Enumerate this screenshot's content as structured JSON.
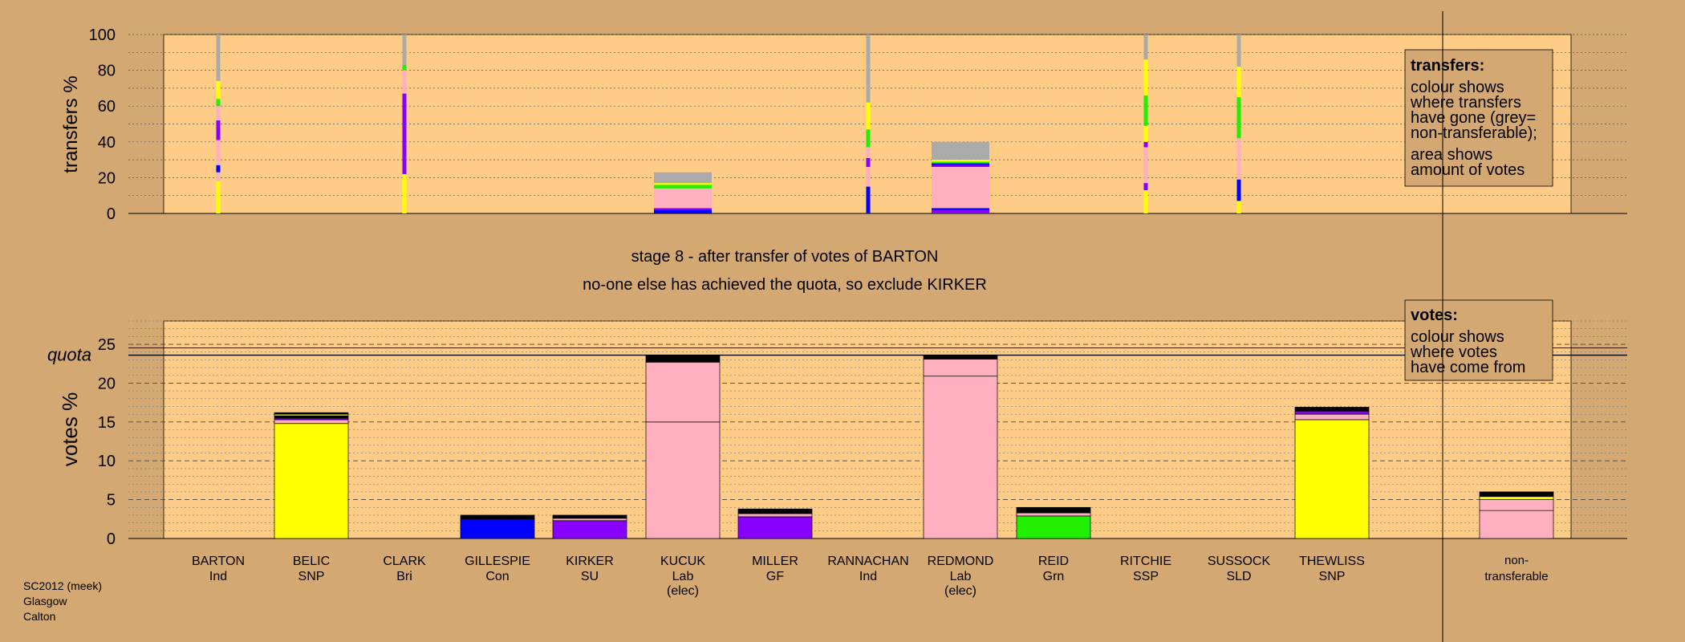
{
  "colors": {
    "background": "#d4a872",
    "panel": "#ffcc88",
    "legend_box": "#d4a872",
    "yellow": "#ffff00",
    "pink": "#ffb0c0",
    "blue": "#0000ff",
    "purple": "#8800ff",
    "green": "#22ee00",
    "grey": "#aaaaaa",
    "black": "#000000"
  },
  "chart_data": [
    {
      "type": "bar",
      "subtype": "stacked transfer distribution",
      "ylabel": "transfers %",
      "ylim": [
        0,
        100
      ],
      "yticks": [
        "0",
        "20",
        "40",
        "60",
        "80",
        "100"
      ],
      "categories": [
        "BARTON",
        "BELIC",
        "CLARK",
        "GILLESPIE",
        "KIRKER",
        "KUCUK",
        "MILLER",
        "RANNACHAN",
        "REDMOND",
        "REID",
        "RITCHIE",
        "SUSSOCK",
        "THEWLISS",
        "non-transferable"
      ],
      "thin_bars": [
        {
          "category": "BARTON",
          "segments": [
            {
              "to": 18,
              "color": "yellow"
            },
            {
              "to": 23,
              "color": "pink"
            },
            {
              "to": 27,
              "color": "blue"
            },
            {
              "to": 41,
              "color": "pink"
            },
            {
              "to": 52,
              "color": "purple"
            },
            {
              "to": 60,
              "color": "pink"
            },
            {
              "to": 64,
              "color": "green"
            },
            {
              "to": 74,
              "color": "yellow"
            },
            {
              "to": 100,
              "color": "grey"
            }
          ]
        },
        {
          "category": "CLARK",
          "segments": [
            {
              "to": 22,
              "color": "yellow"
            },
            {
              "to": 67,
              "color": "purple"
            },
            {
              "to": 80,
              "color": "pink"
            },
            {
              "to": 83,
              "color": "green"
            },
            {
              "to": 100,
              "color": "grey"
            }
          ]
        },
        {
          "category": "RANNACHAN",
          "segments": [
            {
              "to": 15,
              "color": "blue"
            },
            {
              "to": 26,
              "color": "pink"
            },
            {
              "to": 31,
              "color": "purple"
            },
            {
              "to": 37,
              "color": "pink"
            },
            {
              "to": 47,
              "color": "green"
            },
            {
              "to": 62,
              "color": "yellow"
            },
            {
              "to": 100,
              "color": "grey"
            }
          ]
        },
        {
          "category": "RITCHIE",
          "segments": [
            {
              "to": 13,
              "color": "yellow"
            },
            {
              "to": 17,
              "color": "purple"
            },
            {
              "to": 37,
              "color": "pink"
            },
            {
              "to": 40,
              "color": "purple"
            },
            {
              "to": 49,
              "color": "yellow"
            },
            {
              "to": 66,
              "color": "green"
            },
            {
              "to": 86,
              "color": "yellow"
            },
            {
              "to": 100,
              "color": "grey"
            }
          ]
        },
        {
          "category": "SUSSOCK",
          "segments": [
            {
              "to": 7,
              "color": "yellow"
            },
            {
              "to": 19,
              "color": "blue"
            },
            {
              "to": 42,
              "color": "pink"
            },
            {
              "to": 65,
              "color": "green"
            },
            {
              "to": 82,
              "color": "yellow"
            },
            {
              "to": 100,
              "color": "grey"
            }
          ]
        }
      ],
      "wide_bars": [
        {
          "category": "KUCUK",
          "segments": [
            {
              "to": 2,
              "color": "blue"
            },
            {
              "to": 3,
              "color": "purple"
            },
            {
              "to": 14,
              "color": "pink"
            },
            {
              "to": 16,
              "color": "green"
            },
            {
              "to": 17,
              "color": "yellow"
            },
            {
              "to": 23,
              "color": "grey"
            }
          ]
        },
        {
          "category": "REDMOND",
          "segments": [
            {
              "to": 2,
              "color": "purple"
            },
            {
              "to": 3,
              "color": "blue"
            },
            {
              "to": 26,
              "color": "pink"
            },
            {
              "to": 27,
              "color": "purple"
            },
            {
              "to": 28,
              "color": "blue"
            },
            {
              "to": 29,
              "color": "green"
            },
            {
              "to": 30,
              "color": "yellow"
            },
            {
              "to": 40,
              "color": "grey"
            }
          ]
        }
      ]
    },
    {
      "type": "bar",
      "subtype": "stacked vote share",
      "ylabel": "votes %",
      "ylim": [
        0,
        28
      ],
      "yticks": [
        "0",
        "5",
        "10",
        "15",
        "20",
        "25"
      ],
      "quota_value": 23.6,
      "quota_label": "quota",
      "categories": [
        {
          "name": "BARTON",
          "party": "Ind",
          "extra": ""
        },
        {
          "name": "BELIC",
          "party": "SNP",
          "extra": ""
        },
        {
          "name": "CLARK",
          "party": "Bri",
          "extra": ""
        },
        {
          "name": "GILLESPIE",
          "party": "Con",
          "extra": ""
        },
        {
          "name": "KIRKER",
          "party": "SU",
          "extra": ""
        },
        {
          "name": "KUCUK",
          "party": "Lab",
          "extra": "(elec)"
        },
        {
          "name": "MILLER",
          "party": "GF",
          "extra": ""
        },
        {
          "name": "RANNACHAN",
          "party": "Ind",
          "extra": ""
        },
        {
          "name": "REDMOND",
          "party": "Lab",
          "extra": "(elec)"
        },
        {
          "name": "REID",
          "party": "Grn",
          "extra": ""
        },
        {
          "name": "RITCHIE",
          "party": "SSP",
          "extra": ""
        },
        {
          "name": "SUSSOCK",
          "party": "SLD",
          "extra": ""
        },
        {
          "name": "THEWLISS",
          "party": "SNP",
          "extra": ""
        }
      ],
      "nontransferable_label": [
        "non-",
        "transferable"
      ],
      "bars": [
        {
          "category": "BELIC",
          "segments": [
            {
              "to": 14.8,
              "color": "yellow"
            },
            {
              "to": 15.3,
              "color": "pink"
            },
            {
              "to": 15.5,
              "color": "purple"
            },
            {
              "to": 15.8,
              "color": "black"
            },
            {
              "to": 16.0,
              "color": "yellow"
            },
            {
              "to": 16.2,
              "color": "black"
            }
          ]
        },
        {
          "category": "GILLESPIE",
          "segments": [
            {
              "to": 2.5,
              "color": "blue"
            },
            {
              "to": 3.0,
              "color": "black"
            }
          ]
        },
        {
          "category": "KIRKER",
          "segments": [
            {
              "to": 2.3,
              "color": "purple"
            },
            {
              "to": 2.6,
              "color": "pink"
            },
            {
              "to": 3.0,
              "color": "black"
            }
          ]
        },
        {
          "category": "KUCUK",
          "segments": [
            {
              "to": 15.0,
              "color": "pink"
            },
            {
              "to": 22.7,
              "color": "pink"
            },
            {
              "to": 23.0,
              "color": "black"
            },
            {
              "to": 23.6,
              "color": "black"
            }
          ]
        },
        {
          "category": "MILLER",
          "segments": [
            {
              "to": 2.8,
              "color": "purple"
            },
            {
              "to": 3.2,
              "color": "pink"
            },
            {
              "to": 3.8,
              "color": "black"
            }
          ]
        },
        {
          "category": "REDMOND",
          "segments": [
            {
              "to": 20.9,
              "color": "pink"
            },
            {
              "to": 23.1,
              "color": "pink"
            },
            {
              "to": 23.6,
              "color": "black"
            }
          ]
        },
        {
          "category": "REID",
          "segments": [
            {
              "to": 2.9,
              "color": "green"
            },
            {
              "to": 3.3,
              "color": "pink"
            },
            {
              "to": 4.0,
              "color": "black"
            }
          ]
        },
        {
          "category": "THEWLISS",
          "segments": [
            {
              "to": 15.3,
              "color": "yellow"
            },
            {
              "to": 16.0,
              "color": "pink"
            },
            {
              "to": 16.4,
              "color": "purple"
            },
            {
              "to": 16.9,
              "color": "black"
            }
          ]
        },
        {
          "category": "non-transferable",
          "segments": [
            {
              "to": 3.6,
              "color": "pink"
            },
            {
              "to": 5.0,
              "color": "pink"
            },
            {
              "to": 5.4,
              "color": "yellow"
            },
            {
              "to": 6.0,
              "color": "black"
            }
          ]
        }
      ]
    }
  ],
  "stage_title": "stage 8 - after transfer of votes of BARTON",
  "stage_subtitle": "no-one else has achieved the quota, so exclude KIRKER",
  "legend_transfers": {
    "title": "transfers:",
    "lines1": [
      "colour shows",
      "where transfers",
      "have gone (grey=",
      "non-transferable);"
    ],
    "lines2": [
      "area shows",
      "amount of votes"
    ]
  },
  "legend_votes": {
    "title": "votes:",
    "lines": [
      "colour shows",
      "where votes",
      "have come from"
    ]
  },
  "footer": [
    "SC2012 (meek)",
    "Glasgow",
    "Calton"
  ]
}
